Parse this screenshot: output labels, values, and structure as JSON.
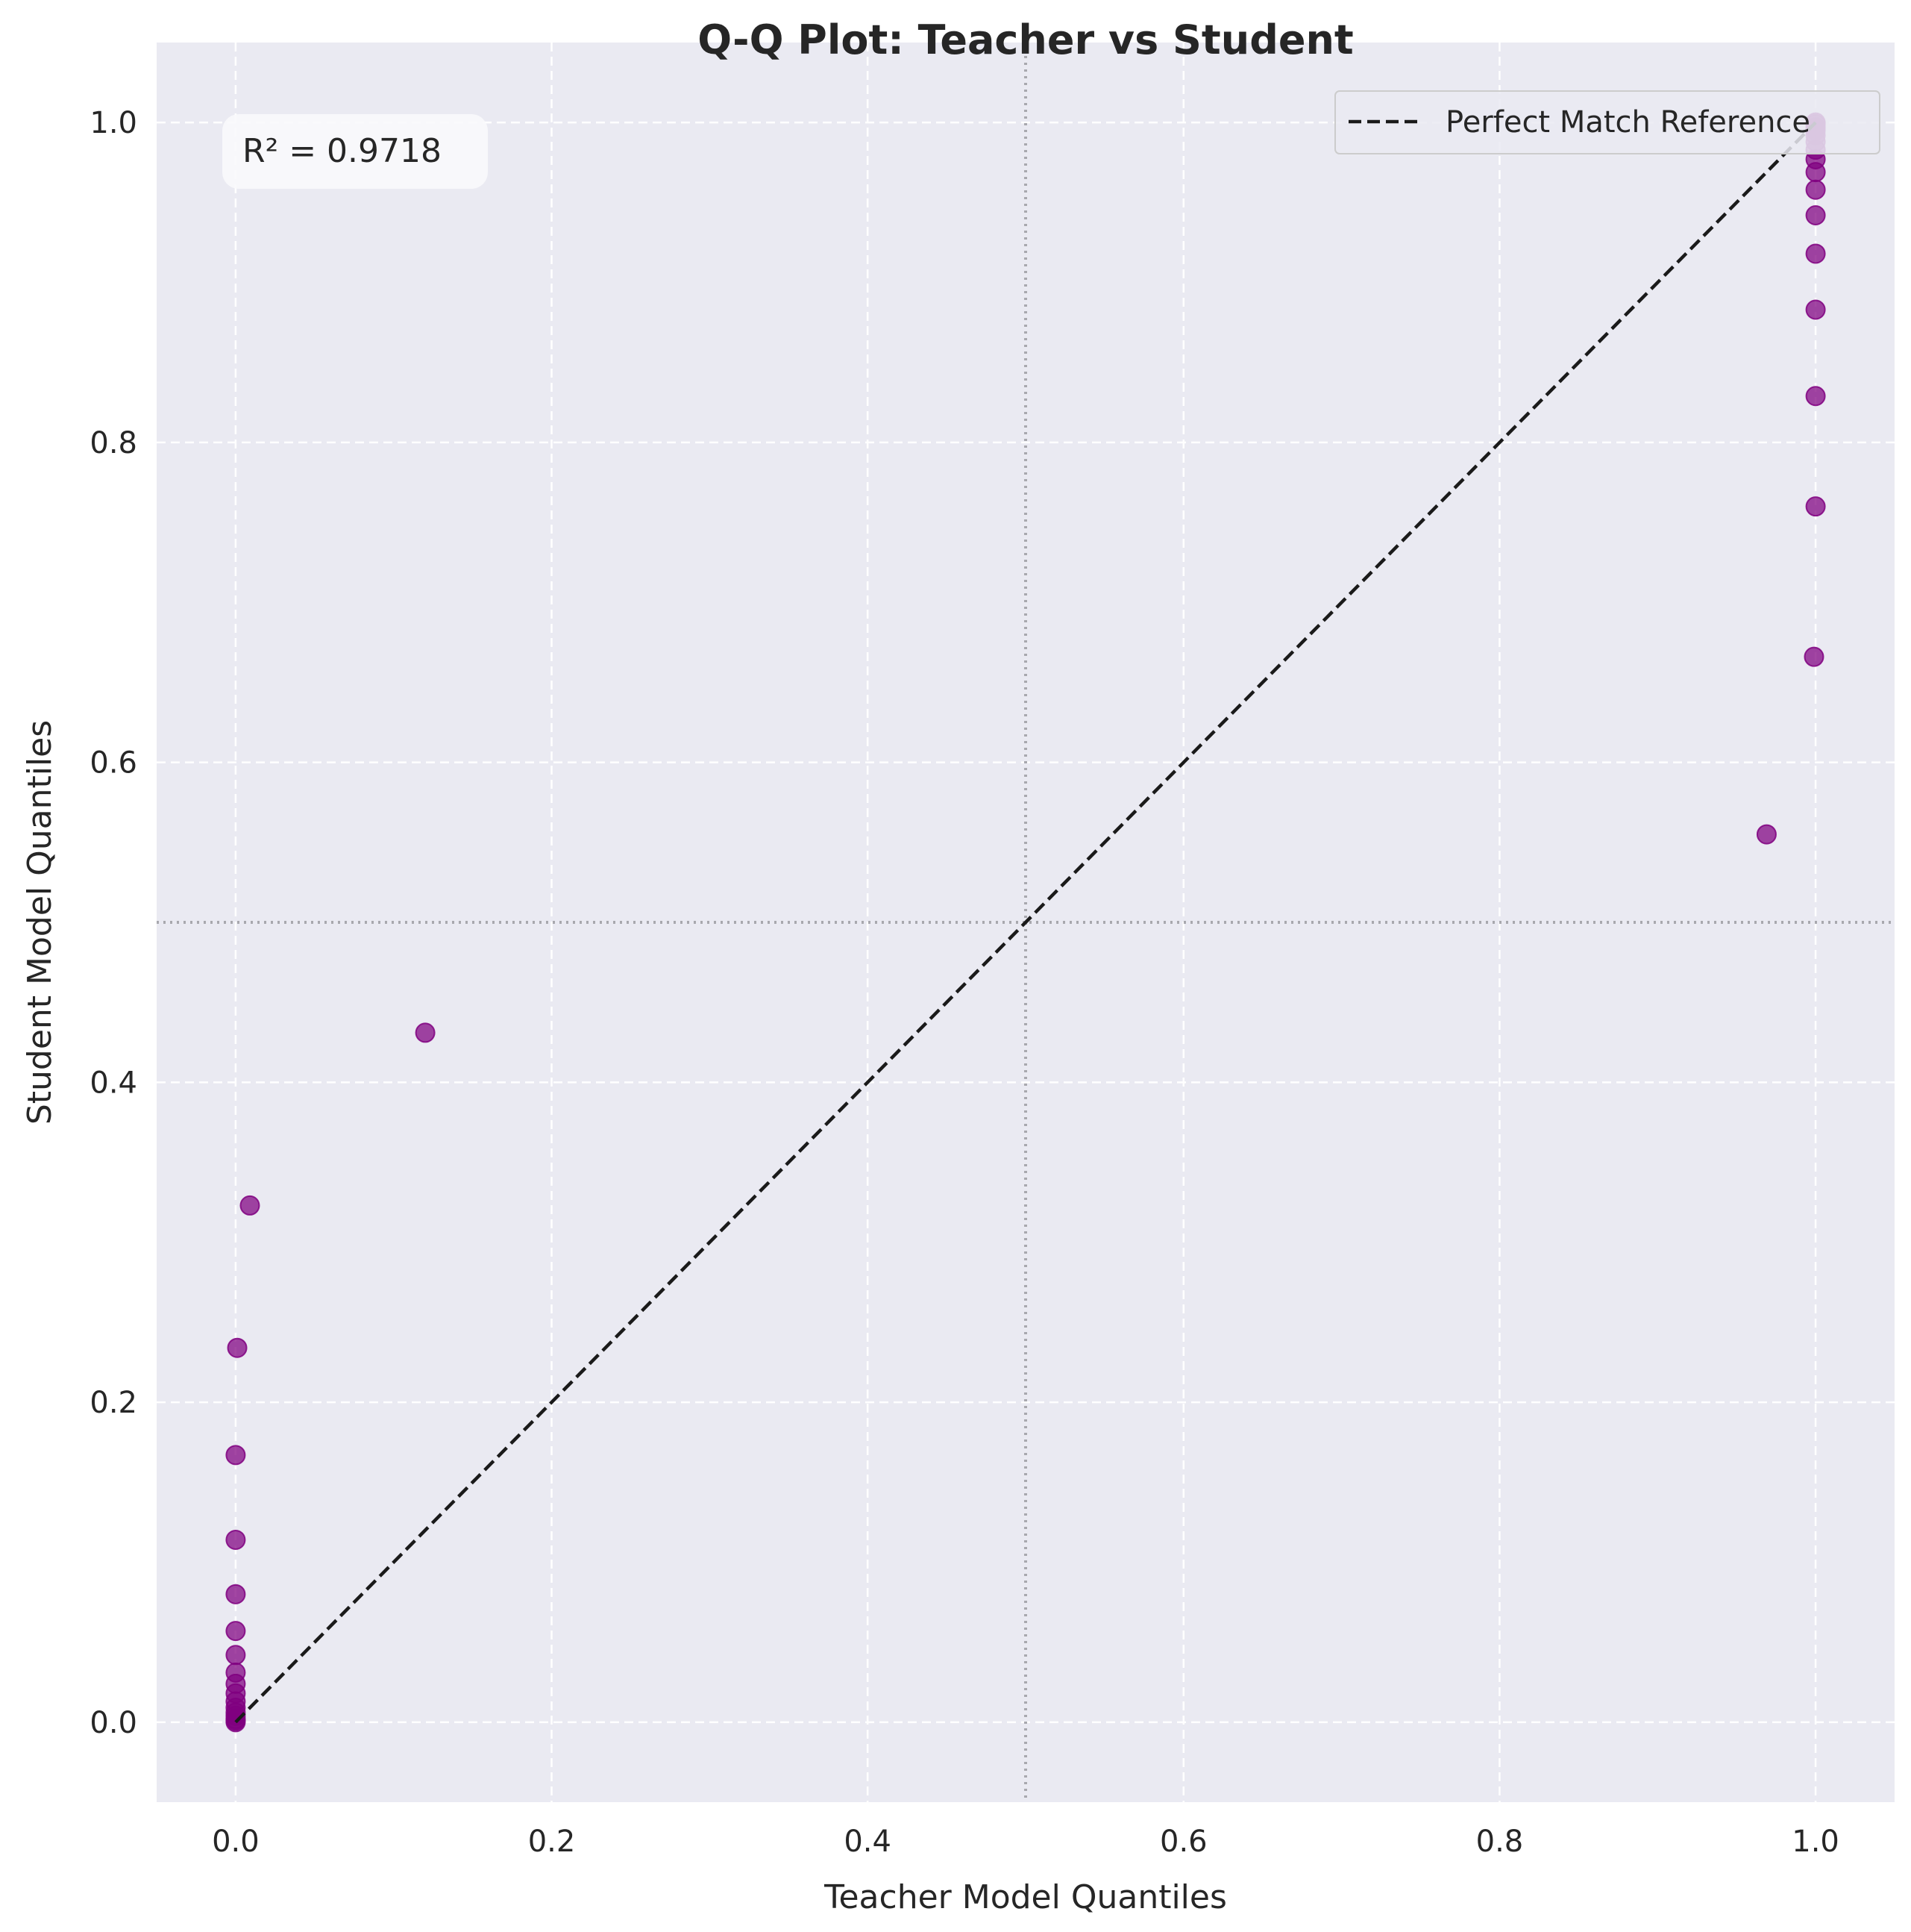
{
  "chart_data": {
    "type": "scatter",
    "title": "Q-Q Plot: Teacher vs Student",
    "xlabel": "Teacher Model Quantiles",
    "ylabel": "Student Model Quantiles",
    "xlim": [
      -0.05,
      1.05
    ],
    "ylim": [
      -0.05,
      1.05
    ],
    "xticks": [
      0.0,
      0.2,
      0.4,
      0.6,
      0.8,
      1.0
    ],
    "yticks": [
      0.0,
      0.2,
      0.4,
      0.6,
      0.8,
      1.0
    ],
    "xtick_labels": [
      "0.0",
      "0.2",
      "0.4",
      "0.6",
      "0.8",
      "1.0"
    ],
    "ytick_labels": [
      "0.0",
      "0.2",
      "0.4",
      "0.6",
      "0.8",
      "1.0"
    ],
    "grid": true,
    "reference_lines": {
      "x": 0.5,
      "y": 0.5,
      "style": "dotted"
    },
    "legend": {
      "placement": "top-right",
      "entries": [
        "Perfect Match Reference"
      ]
    },
    "annotation": "R² = 0.9718",
    "point_color": "#800080",
    "reference_color": "#1a1a1a",
    "background_color": "#eaeaf2",
    "series": [
      {
        "type": "scatter",
        "points": [
          [
            0.0,
            0.0
          ],
          [
            0.0,
            0.001
          ],
          [
            0.0,
            0.002
          ],
          [
            0.0,
            0.004
          ],
          [
            0.0,
            0.006
          ],
          [
            0.0,
            0.009
          ],
          [
            0.0,
            0.013
          ],
          [
            0.0,
            0.018
          ],
          [
            0.0,
            0.024
          ],
          [
            0.0,
            0.031
          ],
          [
            0.0,
            0.042
          ],
          [
            0.0,
            0.057
          ],
          [
            0.0,
            0.08
          ],
          [
            0.0,
            0.114
          ],
          [
            0.0,
            0.167
          ],
          [
            0.001,
            0.234
          ],
          [
            0.009,
            0.323
          ],
          [
            0.12,
            0.431
          ],
          [
            0.969,
            0.555
          ],
          [
            0.999,
            0.666
          ],
          [
            1.0,
            0.76
          ],
          [
            1.0,
            0.829
          ],
          [
            1.0,
            0.883
          ],
          [
            1.0,
            0.918
          ],
          [
            1.0,
            0.942
          ],
          [
            1.0,
            0.958
          ],
          [
            1.0,
            0.969
          ],
          [
            1.0,
            0.977
          ],
          [
            1.0,
            0.983
          ],
          [
            1.0,
            0.988
          ],
          [
            1.0,
            0.992
          ],
          [
            1.0,
            0.995
          ],
          [
            1.0,
            0.997
          ],
          [
            1.0,
            0.999
          ],
          [
            1.0,
            1.0
          ]
        ]
      },
      {
        "type": "line",
        "name": "Perfect Match Reference",
        "points": [
          [
            0.0,
            0.0
          ],
          [
            1.0,
            1.0
          ]
        ]
      }
    ]
  }
}
